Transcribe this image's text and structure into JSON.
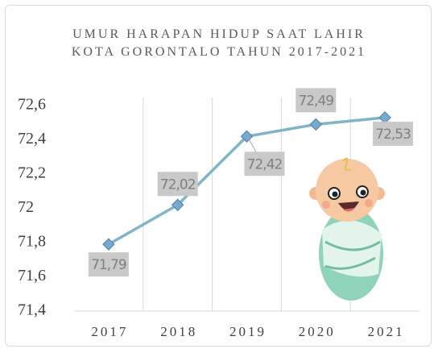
{
  "chart_data": {
    "type": "line",
    "title": "UMUR HARAPAN HIDUP SAAT LAHIR KOTA GORONTALO TAHUN 2017-2021",
    "categories": [
      "2017",
      "2018",
      "2019",
      "2020",
      "2021"
    ],
    "series": [
      {
        "name": "Umur Harapan Hidup",
        "color": "#7fb4c9",
        "marker_color": "#79a9cc",
        "values": [
          71.79,
          72.02,
          72.42,
          72.49,
          72.53
        ],
        "value_labels": [
          "71,79",
          "72,02",
          "72,42",
          "72,49",
          "72,53"
        ]
      }
    ],
    "ylim": [
      71.4,
      72.6
    ],
    "yticks": [
      {
        "value": 71.4,
        "label": "71,4"
      },
      {
        "value": 71.6,
        "label": "71,6"
      },
      {
        "value": 71.8,
        "label": "71,8"
      },
      72,
      {
        "value": 72.2,
        "label": "72,2"
      },
      {
        "value": 72.4,
        "label": "72,4"
      },
      {
        "value": 72.6,
        "label": "72,6"
      }
    ]
  }
}
